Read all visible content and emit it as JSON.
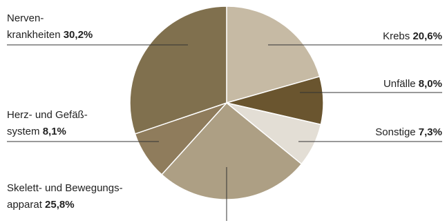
{
  "chart_data": {
    "type": "pie",
    "slices": [
      {
        "label": "Krebs",
        "value": 20.6,
        "value_label": "20,6%",
        "color": "#c6baa4"
      },
      {
        "label": "Unfälle",
        "value": 8.0,
        "value_label": "8,0%",
        "color": "#6a552f"
      },
      {
        "label": "Sonstige",
        "value": 7.3,
        "value_label": "7,3%",
        "color": "#e3ded5"
      },
      {
        "label": "Skelett- und Bewegungs-\napparat",
        "value": 25.8,
        "value_label": "25,8%",
        "color": "#ad9f84"
      },
      {
        "label": "Herz- und Gefäß-\nsystem",
        "value": 8.1,
        "value_label": "8,1%",
        "color": "#8f7c5c"
      },
      {
        "label": "Nerven-\nkrankheiten",
        "value": 30.2,
        "value_label": "30,2%",
        "color": "#80704e"
      }
    ]
  }
}
